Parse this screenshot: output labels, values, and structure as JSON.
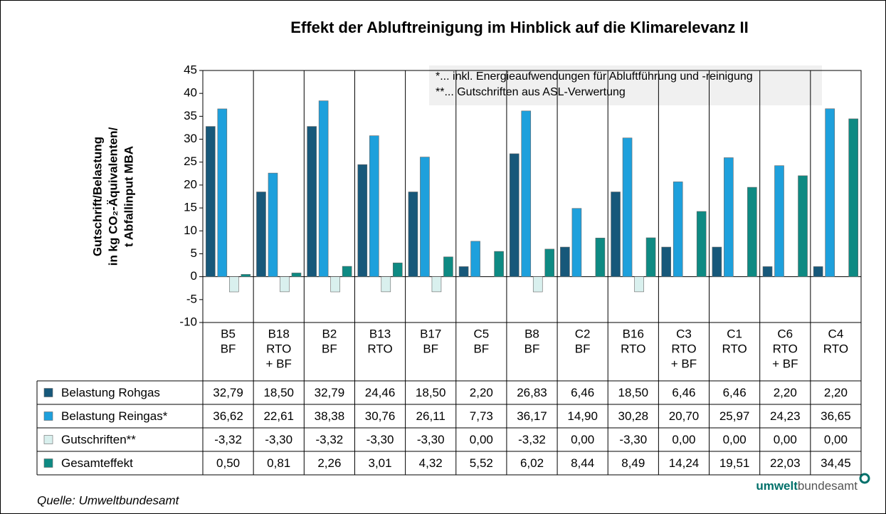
{
  "chart_data": {
    "type": "bar",
    "title": "Effekt der Abluftreinigung im Hinblick auf die Klimarelevanz II",
    "y_label": [
      "Gutschrift/Belastung",
      "in kg CO₂-Äquivalenten/",
      "t Abfallinput MBA"
    ],
    "notes": [
      "*... inkl.  Energieaufwendungen für  Abluftführung und -reinigung",
      "**... Gutschriften aus ASL-Verwertung"
    ],
    "categories": [
      [
        "B5",
        "BF"
      ],
      [
        "B18",
        "RTO",
        "+ BF"
      ],
      [
        "B2",
        "BF"
      ],
      [
        "B13",
        "RTO"
      ],
      [
        "B17",
        "BF"
      ],
      [
        "C5",
        "BF"
      ],
      [
        "B8",
        "BF"
      ],
      [
        "C2",
        "BF"
      ],
      [
        "B16",
        "RTO"
      ],
      [
        "C3",
        "RTO",
        "+ BF"
      ],
      [
        "C1",
        "RTO"
      ],
      [
        "C6",
        "RTO",
        "+ BF"
      ],
      [
        "C4",
        "RTO"
      ]
    ],
    "series": [
      {
        "name": "Belastung Rohgas",
        "color": "#17587a",
        "values": [
          32.79,
          18.5,
          32.79,
          24.46,
          18.5,
          2.2,
          26.83,
          6.46,
          18.5,
          6.46,
          6.46,
          2.2,
          2.2
        ],
        "value_labels": [
          "32,79",
          "18,50",
          "32,79",
          "24,46",
          "18,50",
          "2,20",
          "26,83",
          "6,46",
          "18,50",
          "6,46",
          "6,46",
          "2,20",
          "2,20"
        ]
      },
      {
        "name": "Belastung Reingas*",
        "color": "#1ea0dc",
        "values": [
          36.62,
          22.61,
          38.38,
          30.76,
          26.11,
          7.73,
          36.17,
          14.9,
          30.28,
          20.7,
          25.97,
          24.23,
          36.65
        ],
        "value_labels": [
          "36,62",
          "22,61",
          "38,38",
          "30,76",
          "26,11",
          "7,73",
          "36,17",
          "14,90",
          "30,28",
          "20,70",
          "25,97",
          "24,23",
          "36,65"
        ]
      },
      {
        "name": "Gutschriften**",
        "color": "#d9f0ee",
        "values": [
          -3.32,
          -3.3,
          -3.32,
          -3.3,
          -3.3,
          0,
          -3.32,
          0,
          -3.3,
          0,
          0,
          0,
          0
        ],
        "value_labels": [
          "-3,32",
          "-3,30",
          "-3,32",
          "-3,30",
          "-3,30",
          "0,00",
          "-3,32",
          "0,00",
          "-3,30",
          "0,00",
          "0,00",
          "0,00",
          "0,00"
        ]
      },
      {
        "name": "Gesamteffekt",
        "color": "#0e8a83",
        "values": [
          0.5,
          0.81,
          2.26,
          3.01,
          4.32,
          5.52,
          6.02,
          8.44,
          8.49,
          14.24,
          19.51,
          22.03,
          34.45
        ],
        "value_labels": [
          "0,50",
          "0,81",
          "2,26",
          "3,01",
          "4,32",
          "5,52",
          "6,02",
          "8,44",
          "8,49",
          "14,24",
          "19,51",
          "22,03",
          "34,45"
        ]
      }
    ],
    "ylim": [
      -10,
      45
    ],
    "yticks": [
      -10,
      -5,
      0,
      5,
      10,
      15,
      20,
      25,
      30,
      35,
      40,
      45
    ],
    "source": "Quelle: Umweltbundesamt",
    "logo": {
      "bold": "umwelt",
      "regular": "bundesamt"
    }
  }
}
